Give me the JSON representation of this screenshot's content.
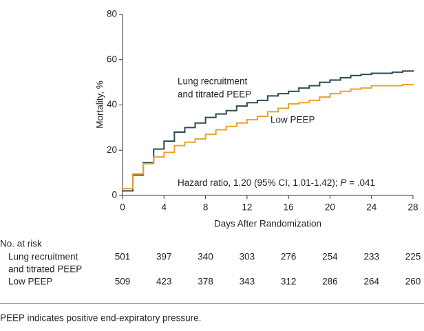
{
  "chart_data": {
    "type": "step",
    "y_label": "Mortality, %",
    "x_label": "Days After Randomization",
    "xlim": [
      0,
      28
    ],
    "xticks": [
      0,
      4,
      8,
      12,
      16,
      20,
      24,
      28
    ],
    "ylim": [
      0,
      80
    ],
    "yticks": [
      0,
      20,
      40,
      60,
      80
    ],
    "x": [
      0,
      1,
      2,
      3,
      4,
      5,
      6,
      7,
      8,
      9,
      10,
      11,
      12,
      13,
      14,
      15,
      16,
      17,
      18,
      19,
      20,
      21,
      22,
      23,
      24,
      25,
      26,
      27,
      28
    ],
    "series": [
      {
        "name": [
          "Lung recruitment",
          "and titrated PEEP"
        ],
        "color": "#2d4a54",
        "values": [
          2,
          9,
          14.5,
          20.5,
          24,
          28,
          30,
          32,
          34.5,
          36,
          37.5,
          39.5,
          41,
          42,
          44,
          45,
          46,
          47.5,
          48.5,
          50,
          51,
          52,
          53,
          53.5,
          54,
          54,
          54.5,
          55,
          55
        ]
      },
      {
        "name": [
          "Low PEEP"
        ],
        "color": "#f0a02c",
        "values": [
          3,
          9.5,
          14,
          17,
          19,
          22,
          23.5,
          25,
          27,
          29,
          30.5,
          32,
          33.5,
          35,
          37,
          38.5,
          40.5,
          41,
          42,
          43.5,
          45,
          46,
          47,
          47.5,
          48.5,
          48.5,
          48.5,
          49,
          49
        ]
      }
    ],
    "annotation": {
      "before": "Hazard ratio, 1.20 (95% CI, 1.01-1.42); ",
      "italic": "P",
      "after": " = .041"
    },
    "risk_table": {
      "title": "No. at risk",
      "rows": [
        {
          "label": [
            "Lung recruitment",
            "and titrated PEEP"
          ],
          "counts": [
            501,
            397,
            340,
            303,
            276,
            254,
            233,
            225
          ]
        },
        {
          "label": [
            "Low PEEP"
          ],
          "counts": [
            509,
            423,
            378,
            343,
            312,
            286,
            264,
            260
          ]
        }
      ]
    }
  },
  "footnote": "PEEP indicates positive end-expiratory pressure."
}
